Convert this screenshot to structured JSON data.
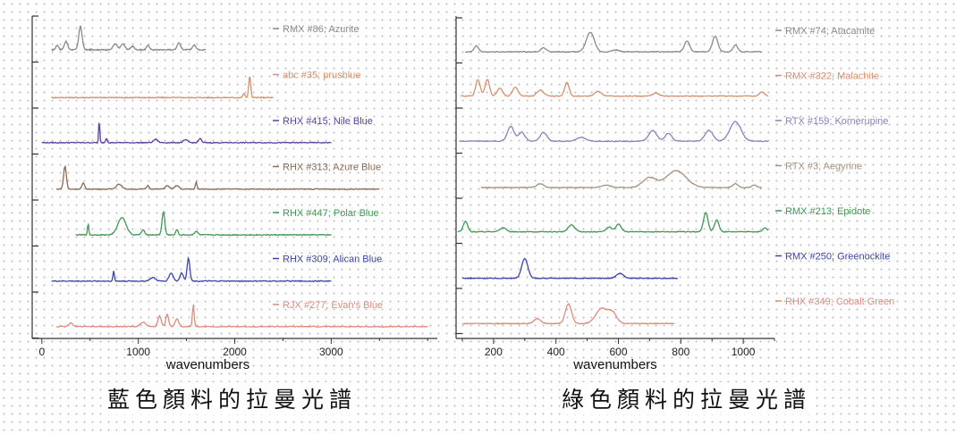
{
  "captions": {
    "left": "藍色顏料的拉曼光譜",
    "right": "綠色顏料的拉曼光譜"
  },
  "chart_data": [
    {
      "type": "line",
      "xlabel": "wavenumbers",
      "ylabel": "",
      "xlim": [
        -100,
        4100
      ],
      "xticks": [
        0,
        1000,
        2000,
        3000
      ],
      "grid": false,
      "legend": "right of each trace",
      "series": [
        {
          "name": "RMX #86; Azurite",
          "color": "#8a8a8a",
          "xrange": [
            100,
            1700
          ],
          "baseline": 0.1,
          "peaks": [
            [
              400,
              1.0,
              25
            ],
            [
              250,
              0.35,
              25
            ],
            [
              160,
              0.2,
              20
            ],
            [
              760,
              0.25,
              30
            ],
            [
              840,
              0.25,
              30
            ],
            [
              940,
              0.15,
              25
            ],
            [
              1100,
              0.2,
              20
            ],
            [
              1420,
              0.3,
              25
            ],
            [
              1580,
              0.2,
              25
            ]
          ]
        },
        {
          "name": "abc #35; prusblue",
          "color": "#d88f6e",
          "xrange": [
            100,
            2400
          ],
          "baseline": 0.02,
          "peaks": [
            [
              2155,
              0.9,
              15
            ],
            [
              2095,
              0.18,
              15
            ]
          ]
        },
        {
          "name": "RHX #415; Nile Blue",
          "color": "#5a3fa0",
          "xrange": [
            0,
            3000
          ],
          "baseline": 0.06,
          "peaks": [
            [
              595,
              1.0,
              8
            ],
            [
              670,
              0.2,
              12
            ],
            [
              1180,
              0.15,
              30
            ],
            [
              1490,
              0.12,
              30
            ],
            [
              1640,
              0.18,
              20
            ]
          ]
        },
        {
          "name": "RHX #313; Azure Blue",
          "color": "#8b6a55",
          "xrange": [
            150,
            3500
          ],
          "baseline": 0.04,
          "peaks": [
            [
              240,
              1.0,
              20
            ],
            [
              430,
              0.25,
              20
            ],
            [
              800,
              0.22,
              40
            ],
            [
              1100,
              0.15,
              20
            ],
            [
              1300,
              0.15,
              30
            ],
            [
              1400,
              0.15,
              30
            ],
            [
              1600,
              0.3,
              12
            ]
          ]
        },
        {
          "name": "RHX #447; Polar Blue",
          "color": "#3e9a50",
          "xrange": [
            350,
            3000
          ],
          "baseline": 0.05,
          "peaks": [
            [
              480,
              0.45,
              10
            ],
            [
              830,
              0.75,
              60
            ],
            [
              1050,
              0.2,
              25
            ],
            [
              1260,
              1.0,
              20
            ],
            [
              1400,
              0.25,
              15
            ],
            [
              1600,
              0.15,
              25
            ]
          ]
        },
        {
          "name": "RHX #309; Alican Blue",
          "color": "#3a44b0",
          "xrange": [
            100,
            3000
          ],
          "baseline": 0.04,
          "peaks": [
            [
              745,
              0.45,
              10
            ],
            [
              1150,
              0.15,
              40
            ],
            [
              1340,
              0.35,
              30
            ],
            [
              1450,
              0.35,
              25
            ],
            [
              1520,
              1.0,
              20
            ]
          ]
        },
        {
          "name": "RJX #277; Evan's Blue",
          "color": "#e08a7c",
          "xrange": [
            150,
            4000
          ],
          "baseline": 0.06,
          "peaks": [
            [
              300,
              0.15,
              30
            ],
            [
              1050,
              0.2,
              40
            ],
            [
              1220,
              0.45,
              25
            ],
            [
              1300,
              0.55,
              20
            ],
            [
              1400,
              0.35,
              25
            ],
            [
              1570,
              1.0,
              12
            ]
          ]
        }
      ]
    },
    {
      "type": "line",
      "xlabel": "wavenumbers",
      "ylabel": "",
      "xlim": [
        80,
        1100
      ],
      "xticks": [
        200,
        400,
        600,
        800,
        1000
      ],
      "grid": false,
      "legend": "right of each trace",
      "series": [
        {
          "name": "RMX #74; Atacamite",
          "color": "#8a8a8a",
          "xrange": [
            110,
            1060
          ],
          "baseline": 0.08,
          "peaks": [
            [
              145,
              0.3,
              10
            ],
            [
              360,
              0.2,
              12
            ],
            [
              510,
              1.0,
              18
            ],
            [
              590,
              0.1,
              15
            ],
            [
              820,
              0.55,
              12
            ],
            [
              910,
              0.8,
              12
            ],
            [
              975,
              0.35,
              10
            ]
          ]
        },
        {
          "name": "RMX #322; Malachite",
          "color": "#d88f6e",
          "xrange": [
            95,
            1080
          ],
          "baseline": 0.12,
          "peaks": [
            [
              150,
              0.85,
              10
            ],
            [
              180,
              0.85,
              10
            ],
            [
              220,
              0.4,
              12
            ],
            [
              270,
              0.45,
              12
            ],
            [
              350,
              0.3,
              15
            ],
            [
              435,
              0.7,
              10
            ],
            [
              535,
              0.25,
              15
            ],
            [
              720,
              0.15,
              15
            ],
            [
              1060,
              0.2,
              12
            ]
          ]
        },
        {
          "name": "RTX #159; Kornerupine",
          "color": "#8a7fbf",
          "xrange": [
            90,
            1080
          ],
          "baseline": 0.12,
          "peaks": [
            [
              255,
              0.75,
              15
            ],
            [
              290,
              0.45,
              15
            ],
            [
              360,
              0.45,
              15
            ],
            [
              480,
              0.2,
              20
            ],
            [
              710,
              0.55,
              18
            ],
            [
              760,
              0.4,
              15
            ],
            [
              890,
              0.55,
              18
            ],
            [
              975,
              1.0,
              25
            ]
          ]
        },
        {
          "name": "RTX #3; Aegyrine",
          "color": "#a8917f",
          "xrange": [
            160,
            1060
          ],
          "baseline": 0.06,
          "peaks": [
            [
              350,
              0.2,
              15
            ],
            [
              560,
              0.12,
              20
            ],
            [
              700,
              0.5,
              30
            ],
            [
              785,
              0.85,
              45
            ],
            [
              975,
              0.2,
              12
            ],
            [
              1035,
              0.12,
              10
            ]
          ]
        },
        {
          "name": "RMX #213; Epidote",
          "color": "#3e9a50",
          "xrange": [
            85,
            1080
          ],
          "baseline": 0.1,
          "peaks": [
            [
              110,
              0.55,
              10
            ],
            [
              230,
              0.2,
              15
            ],
            [
              450,
              0.35,
              15
            ],
            [
              570,
              0.25,
              12
            ],
            [
              600,
              0.4,
              12
            ],
            [
              880,
              1.0,
              10
            ],
            [
              915,
              0.6,
              10
            ],
            [
              1070,
              0.2,
              10
            ]
          ]
        },
        {
          "name": "RMX #250; Greenockite",
          "color": "#3a44b0",
          "xrange": [
            100,
            790
          ],
          "baseline": 0.03,
          "peaks": [
            [
              300,
              1.0,
              14
            ],
            [
              605,
              0.25,
              16
            ]
          ]
        },
        {
          "name": "RHX #349; Cobalt Green",
          "color": "#e08a7c",
          "xrange": [
            100,
            780
          ],
          "baseline": 0.02,
          "peaks": [
            [
              340,
              0.25,
              15
            ],
            [
              440,
              1.0,
              14
            ],
            [
              545,
              0.75,
              25
            ],
            [
              580,
              0.55,
              20
            ]
          ]
        }
      ]
    }
  ]
}
